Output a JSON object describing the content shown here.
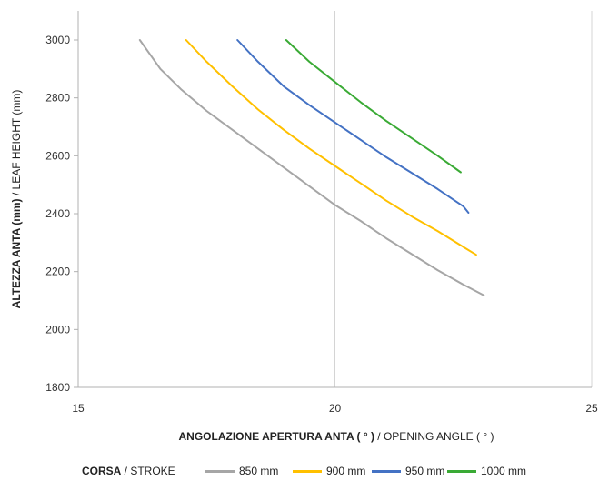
{
  "chart_data": {
    "type": "line",
    "xlabel_bold": "ANGOLAZIONE APERTURA ANTA ( ° )",
    "xlabel_rest": " / OPENING ANGLE ( ° )",
    "ylabel_bold": "ALTEZZA ANTA (mm)",
    "ylabel_rest": " / LEAF HEIGHT (mm)",
    "xlim": [
      15,
      25
    ],
    "ylim": [
      1800,
      3000
    ],
    "xticks": [
      15,
      20,
      25
    ],
    "yticks": [
      1800,
      2000,
      2200,
      2400,
      2600,
      2800,
      3000
    ],
    "grid": "x-major only",
    "legend_title_bold": "CORSA",
    "legend_title_rest": " / STROKE",
    "legend_position": "bottom",
    "series": [
      {
        "name": "850 mm",
        "color": "#a6a6a6",
        "x": [
          16.2,
          16.6,
          17.0,
          17.5,
          18.0,
          18.5,
          19.0,
          19.5,
          20.0,
          20.5,
          21.0,
          21.5,
          22.0,
          22.5,
          22.9
        ],
        "y": [
          3000,
          2900,
          2830,
          2755,
          2690,
          2625,
          2560,
          2495,
          2430,
          2375,
          2315,
          2260,
          2205,
          2155,
          2118
        ]
      },
      {
        "name": "900 mm",
        "color": "#ffc000",
        "x": [
          17.1,
          17.5,
          18.0,
          18.5,
          19.0,
          19.5,
          20.0,
          20.5,
          21.0,
          21.5,
          22.0,
          22.5,
          22.75
        ],
        "y": [
          3000,
          2925,
          2840,
          2760,
          2690,
          2625,
          2565,
          2505,
          2445,
          2390,
          2340,
          2285,
          2258
        ]
      },
      {
        "name": "950 mm",
        "color": "#4472c4",
        "x": [
          18.1,
          18.5,
          19.0,
          19.5,
          20.0,
          20.5,
          21.0,
          21.5,
          22.0,
          22.5,
          22.6
        ],
        "y": [
          3000,
          2925,
          2840,
          2775,
          2715,
          2655,
          2595,
          2540,
          2485,
          2425,
          2403
        ]
      },
      {
        "name": "1000 mm",
        "color": "#3aaa35",
        "x": [
          19.05,
          19.5,
          20.0,
          20.5,
          21.0,
          21.5,
          22.0,
          22.45
        ],
        "y": [
          3000,
          2925,
          2855,
          2785,
          2720,
          2660,
          2600,
          2543
        ]
      }
    ]
  }
}
